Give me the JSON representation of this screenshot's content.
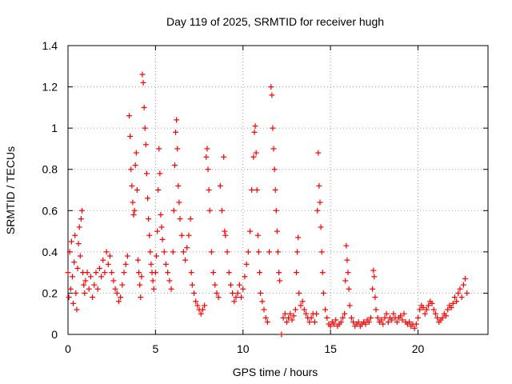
{
  "chart_data": {
    "type": "scatter",
    "title": "Day 119 of 2025, SRMTID for receiver hugh",
    "xlabel": "GPS time / hours",
    "ylabel": "SRMTID / TECUs",
    "xlim": [
      0,
      24
    ],
    "ylim": [
      0,
      1.4
    ],
    "x_ticks": [
      0,
      5,
      10,
      15,
      20
    ],
    "y_ticks": [
      0,
      0.2,
      0.4,
      0.6,
      0.8,
      1.0,
      1.2,
      1.4
    ],
    "x_tick_labels": [
      "0",
      "5",
      "10",
      "15",
      "20"
    ],
    "y_tick_labels": [
      "0",
      "0.2",
      "0.4",
      "0.6",
      "0.8",
      "1",
      "1.2",
      "1.4"
    ],
    "grid": true,
    "marker": "plus",
    "series": [
      {
        "name": "SRMTID",
        "color": "#ff0000",
        "points": [
          [
            0.0,
            0.3
          ],
          [
            0.05,
            0.18
          ],
          [
            0.1,
            0.4
          ],
          [
            0.15,
            0.22
          ],
          [
            0.2,
            0.45
          ],
          [
            0.25,
            0.28
          ],
          [
            0.3,
            0.15
          ],
          [
            0.35,
            0.35
          ],
          [
            0.4,
            0.48
          ],
          [
            0.45,
            0.2
          ],
          [
            0.5,
            0.12
          ],
          [
            0.55,
            0.32
          ],
          [
            0.6,
            0.44
          ],
          [
            0.65,
            0.52
          ],
          [
            0.7,
            0.38
          ],
          [
            0.75,
            0.56
          ],
          [
            0.8,
            0.6
          ],
          [
            0.85,
            0.3
          ],
          [
            0.9,
            0.24
          ],
          [
            0.95,
            0.2
          ],
          [
            1.0,
            0.26
          ],
          [
            1.1,
            0.3
          ],
          [
            1.2,
            0.22
          ],
          [
            1.3,
            0.28
          ],
          [
            1.4,
            0.18
          ],
          [
            1.5,
            0.24
          ],
          [
            1.6,
            0.3
          ],
          [
            1.7,
            0.22
          ],
          [
            1.8,
            0.32
          ],
          [
            1.9,
            0.28
          ],
          [
            2.0,
            0.36
          ],
          [
            2.1,
            0.3
          ],
          [
            2.2,
            0.4
          ],
          [
            2.3,
            0.34
          ],
          [
            2.4,
            0.38
          ],
          [
            2.5,
            0.3
          ],
          [
            2.6,
            0.26
          ],
          [
            2.7,
            0.22
          ],
          [
            2.8,
            0.2
          ],
          [
            2.9,
            0.16
          ],
          [
            3.0,
            0.18
          ],
          [
            3.1,
            0.24
          ],
          [
            3.2,
            0.3
          ],
          [
            3.3,
            0.34
          ],
          [
            3.4,
            0.38
          ],
          [
            3.5,
            1.06
          ],
          [
            3.55,
            0.96
          ],
          [
            3.6,
            0.8
          ],
          [
            3.65,
            0.72
          ],
          [
            3.7,
            0.64
          ],
          [
            3.75,
            0.58
          ],
          [
            3.8,
            0.6
          ],
          [
            3.85,
            0.82
          ],
          [
            3.9,
            0.88
          ],
          [
            3.95,
            0.7
          ],
          [
            4.0,
            0.36
          ],
          [
            4.05,
            0.3
          ],
          [
            4.1,
            0.24
          ],
          [
            4.15,
            0.18
          ],
          [
            4.2,
            0.28
          ],
          [
            4.25,
            1.26
          ],
          [
            4.3,
            1.22
          ],
          [
            4.35,
            1.1
          ],
          [
            4.4,
            1.0
          ],
          [
            4.45,
            0.92
          ],
          [
            4.5,
            0.78
          ],
          [
            4.55,
            0.66
          ],
          [
            4.6,
            0.56
          ],
          [
            4.65,
            0.48
          ],
          [
            4.7,
            0.4
          ],
          [
            4.75,
            0.34
          ],
          [
            4.8,
            0.3
          ],
          [
            4.85,
            0.26
          ],
          [
            4.9,
            0.22
          ],
          [
            5.0,
            0.3
          ],
          [
            5.05,
            0.38
          ],
          [
            5.1,
            0.5
          ],
          [
            5.15,
            0.7
          ],
          [
            5.2,
            0.9
          ],
          [
            5.25,
            0.78
          ],
          [
            5.3,
            0.58
          ],
          [
            5.35,
            0.52
          ],
          [
            5.4,
            0.46
          ],
          [
            5.5,
            0.4
          ],
          [
            5.6,
            0.34
          ],
          [
            5.7,
            0.3
          ],
          [
            5.8,
            0.26
          ],
          [
            5.9,
            0.22
          ],
          [
            6.0,
            0.4
          ],
          [
            6.05,
            0.6
          ],
          [
            6.1,
            0.82
          ],
          [
            6.15,
            0.98
          ],
          [
            6.2,
            1.04
          ],
          [
            6.25,
            0.9
          ],
          [
            6.3,
            0.72
          ],
          [
            6.35,
            0.64
          ],
          [
            6.4,
            0.56
          ],
          [
            6.5,
            0.48
          ],
          [
            6.6,
            0.4
          ],
          [
            6.7,
            0.36
          ],
          [
            6.8,
            0.42
          ],
          [
            6.9,
            0.48
          ],
          [
            7.0,
            0.56
          ],
          [
            7.05,
            0.3
          ],
          [
            7.1,
            0.24
          ],
          [
            7.2,
            0.2
          ],
          [
            7.3,
            0.16
          ],
          [
            7.4,
            0.14
          ],
          [
            7.5,
            0.12
          ],
          [
            7.6,
            0.1
          ],
          [
            7.7,
            0.12
          ],
          [
            7.8,
            0.14
          ],
          [
            7.9,
            0.86
          ],
          [
            7.95,
            0.9
          ],
          [
            8.0,
            0.8
          ],
          [
            8.05,
            0.7
          ],
          [
            8.1,
            0.6
          ],
          [
            8.2,
            0.4
          ],
          [
            8.3,
            0.3
          ],
          [
            8.4,
            0.24
          ],
          [
            8.5,
            0.2
          ],
          [
            8.6,
            0.18
          ],
          [
            8.7,
            0.72
          ],
          [
            8.8,
            0.6
          ],
          [
            8.9,
            0.86
          ],
          [
            8.95,
            0.5
          ],
          [
            9.0,
            0.48
          ],
          [
            9.1,
            0.4
          ],
          [
            9.2,
            0.3
          ],
          [
            9.3,
            0.24
          ],
          [
            9.4,
            0.2
          ],
          [
            9.5,
            0.16
          ],
          [
            9.6,
            0.18
          ],
          [
            9.7,
            0.2
          ],
          [
            9.8,
            0.24
          ],
          [
            9.9,
            0.18
          ],
          [
            10.0,
            0.22
          ],
          [
            10.1,
            0.28
          ],
          [
            10.2,
            0.34
          ],
          [
            10.3,
            0.4
          ],
          [
            10.4,
            0.5
          ],
          [
            10.5,
            0.7
          ],
          [
            10.6,
            0.86
          ],
          [
            10.65,
            0.98
          ],
          [
            10.7,
            1.01
          ],
          [
            10.75,
            0.88
          ],
          [
            10.8,
            0.7
          ],
          [
            10.85,
            0.48
          ],
          [
            10.9,
            0.4
          ],
          [
            10.95,
            0.3
          ],
          [
            11.0,
            0.2
          ],
          [
            11.1,
            0.16
          ],
          [
            11.2,
            0.12
          ],
          [
            11.3,
            0.08
          ],
          [
            11.4,
            0.06
          ],
          [
            11.5,
            0.4
          ],
          [
            11.6,
            1.2
          ],
          [
            11.65,
            1.16
          ],
          [
            11.7,
            1.0
          ],
          [
            11.75,
            0.9
          ],
          [
            11.8,
            0.8
          ],
          [
            11.85,
            0.7
          ],
          [
            11.9,
            0.6
          ],
          [
            11.95,
            0.5
          ],
          [
            12.0,
            0.4
          ],
          [
            12.05,
            0.3
          ],
          [
            12.1,
            0.26
          ],
          [
            12.2,
            0.0
          ],
          [
            12.3,
            0.08
          ],
          [
            12.4,
            0.1
          ],
          [
            12.5,
            0.06
          ],
          [
            12.6,
            0.08
          ],
          [
            12.7,
            0.1
          ],
          [
            12.8,
            0.07
          ],
          [
            12.9,
            0.09
          ],
          [
            13.0,
            0.12
          ],
          [
            13.05,
            0.3
          ],
          [
            13.1,
            0.4
          ],
          [
            13.15,
            0.47
          ],
          [
            13.2,
            0.2
          ],
          [
            13.3,
            0.14
          ],
          [
            13.4,
            0.16
          ],
          [
            13.5,
            0.12
          ],
          [
            13.6,
            0.1
          ],
          [
            13.7,
            0.08
          ],
          [
            13.8,
            0.06
          ],
          [
            13.9,
            0.08
          ],
          [
            14.0,
            0.1
          ],
          [
            14.1,
            0.06
          ],
          [
            14.2,
            0.1
          ],
          [
            14.25,
            0.6
          ],
          [
            14.3,
            0.88
          ],
          [
            14.35,
            0.72
          ],
          [
            14.4,
            0.64
          ],
          [
            14.45,
            0.52
          ],
          [
            14.5,
            0.4
          ],
          [
            14.55,
            0.3
          ],
          [
            14.6,
            0.2
          ],
          [
            14.7,
            0.12
          ],
          [
            14.8,
            0.08
          ],
          [
            14.9,
            0.05
          ],
          [
            15.0,
            0.04
          ],
          [
            15.1,
            0.06
          ],
          [
            15.2,
            0.05
          ],
          [
            15.3,
            0.07
          ],
          [
            15.4,
            0.04
          ],
          [
            15.5,
            0.05
          ],
          [
            15.6,
            0.06
          ],
          [
            15.7,
            0.08
          ],
          [
            15.8,
            0.1
          ],
          [
            15.85,
            0.26
          ],
          [
            15.9,
            0.43
          ],
          [
            15.95,
            0.36
          ],
          [
            16.0,
            0.3
          ],
          [
            16.05,
            0.22
          ],
          [
            16.1,
            0.14
          ],
          [
            16.2,
            0.08
          ],
          [
            16.3,
            0.06
          ],
          [
            16.4,
            0.04
          ],
          [
            16.5,
            0.05
          ],
          [
            16.6,
            0.06
          ],
          [
            16.7,
            0.04
          ],
          [
            16.8,
            0.05
          ],
          [
            16.9,
            0.06
          ],
          [
            17.0,
            0.05
          ],
          [
            17.1,
            0.07
          ],
          [
            17.2,
            0.06
          ],
          [
            17.3,
            0.08
          ],
          [
            17.4,
            0.22
          ],
          [
            17.45,
            0.31
          ],
          [
            17.5,
            0.28
          ],
          [
            17.55,
            0.18
          ],
          [
            17.6,
            0.12
          ],
          [
            17.7,
            0.08
          ],
          [
            17.8,
            0.06
          ],
          [
            17.9,
            0.07
          ],
          [
            18.0,
            0.05
          ],
          [
            18.1,
            0.08
          ],
          [
            18.2,
            0.1
          ],
          [
            18.3,
            0.06
          ],
          [
            18.4,
            0.08
          ],
          [
            18.5,
            0.07
          ],
          [
            18.6,
            0.1
          ],
          [
            18.7,
            0.08
          ],
          [
            18.8,
            0.06
          ],
          [
            18.9,
            0.08
          ],
          [
            19.0,
            0.09
          ],
          [
            19.1,
            0.07
          ],
          [
            19.2,
            0.1
          ],
          [
            19.3,
            0.06
          ],
          [
            19.4,
            0.05
          ],
          [
            19.5,
            0.06
          ],
          [
            19.6,
            0.04
          ],
          [
            19.7,
            0.05
          ],
          [
            19.8,
            0.03
          ],
          [
            19.9,
            0.05
          ],
          [
            20.0,
            0.08
          ],
          [
            20.1,
            0.12
          ],
          [
            20.2,
            0.14
          ],
          [
            20.3,
            0.13
          ],
          [
            20.4,
            0.1
          ],
          [
            20.5,
            0.12
          ],
          [
            20.6,
            0.14
          ],
          [
            20.7,
            0.16
          ],
          [
            20.8,
            0.15
          ],
          [
            20.9,
            0.12
          ],
          [
            21.0,
            0.1
          ],
          [
            21.1,
            0.08
          ],
          [
            21.2,
            0.06
          ],
          [
            21.3,
            0.07
          ],
          [
            21.4,
            0.08
          ],
          [
            21.5,
            0.1
          ],
          [
            21.6,
            0.09
          ],
          [
            21.7,
            0.12
          ],
          [
            21.8,
            0.14
          ],
          [
            21.9,
            0.13
          ],
          [
            22.0,
            0.15
          ],
          [
            22.1,
            0.18
          ],
          [
            22.2,
            0.16
          ],
          [
            22.3,
            0.2
          ],
          [
            22.4,
            0.22
          ],
          [
            22.5,
            0.18
          ],
          [
            22.6,
            0.24
          ],
          [
            22.7,
            0.27
          ],
          [
            22.8,
            0.2
          ]
        ]
      }
    ]
  }
}
